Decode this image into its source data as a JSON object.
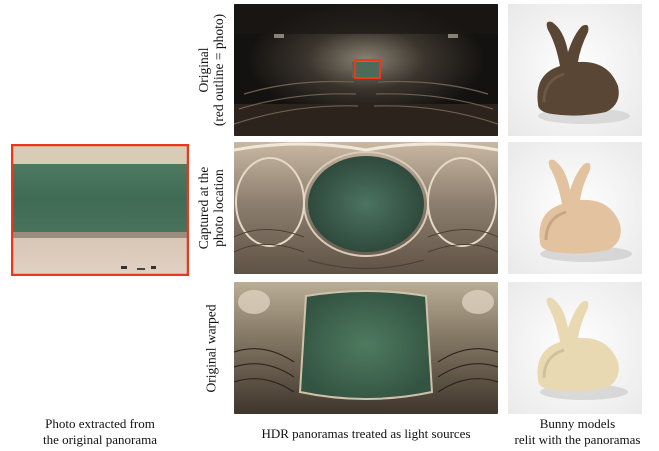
{
  "row_labels": {
    "row1_line1": "Original",
    "row1_line2": "(red outline = photo)",
    "row2_line1": "Captured at the",
    "row2_line2": "photo location",
    "row3": "Original warped"
  },
  "captions": {
    "photo_line1": "Photo extracted from",
    "photo_line2": "the original panorama",
    "panoramas": "HDR panoramas treated as light sources",
    "bunny_line1": "Bunny models",
    "bunny_line2": "relit with the panoramas"
  },
  "colors": {
    "outline_red": "#e8391d",
    "chalkboard_green": "#3f6a53"
  }
}
